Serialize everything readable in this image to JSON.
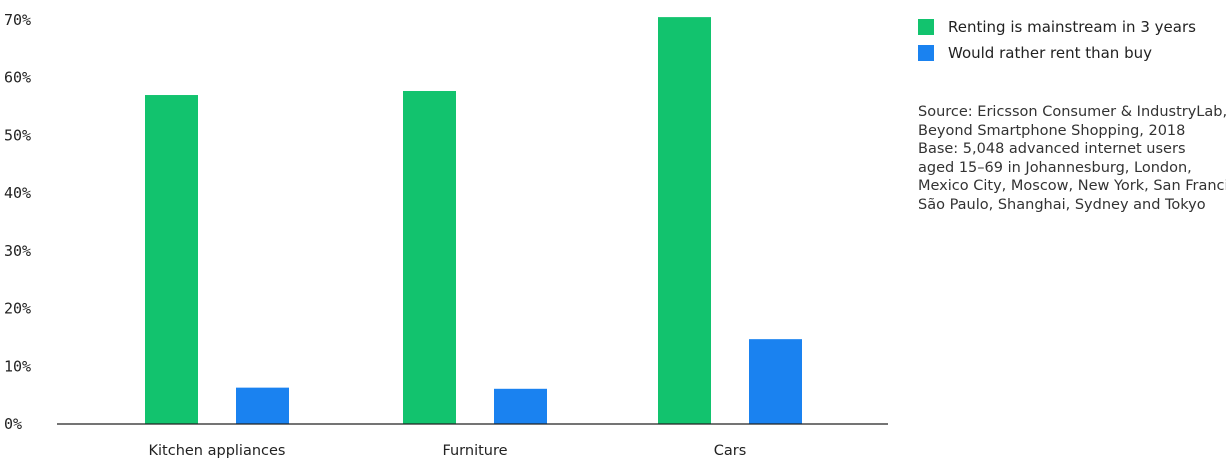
{
  "chart_data": {
    "type": "bar",
    "categories": [
      "Kitchen appliances",
      "Furniture",
      "Cars"
    ],
    "series": [
      {
        "name": "Renting is mainstream in 3 years",
        "color": "#12c36e",
        "values": [
          57,
          57.7,
          70.5
        ]
      },
      {
        "name": "Would rather rent than buy",
        "color": "#1a82f0",
        "values": [
          6.3,
          6.1,
          14.7
        ]
      }
    ],
    "yticks": [
      "0%",
      "10%",
      "20%",
      "30%",
      "40%",
      "50%",
      "60%",
      "70%"
    ],
    "ylim": [
      0,
      70
    ],
    "grid": false,
    "legend_position": "top-right"
  },
  "source_lines": [
    "Source: Ericsson Consumer & IndustryLab,",
    "Beyond Smartphone Shopping, 2018",
    "Base: 5,048 advanced internet users",
    "aged 15–69 in Johannesburg, London,",
    "Mexico City, Moscow, New York, San Francisco,",
    "São Paulo, Shanghai, Sydney and Tokyo"
  ]
}
